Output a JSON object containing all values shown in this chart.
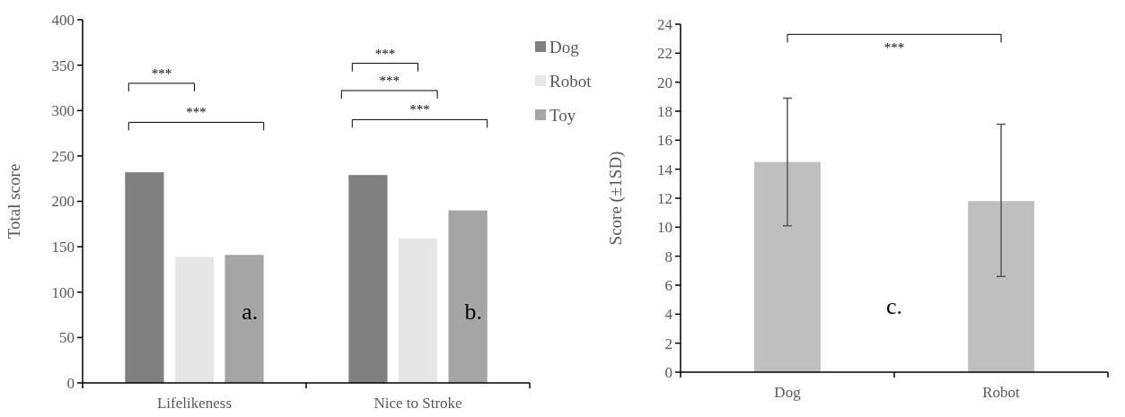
{
  "chart_data": [
    {
      "type": "bar",
      "ylabel": "Total score",
      "categories": [
        "Lifelikeness",
        "Nice to Stroke"
      ],
      "series": [
        {
          "name": "Dog",
          "color": "#808080",
          "values": [
            232,
            229
          ]
        },
        {
          "name": "Robot",
          "color": "#e6e6e6",
          "values": [
            139,
            159
          ]
        },
        {
          "name": "Toy",
          "color": "#a5a5a5",
          "values": [
            141,
            190
          ]
        }
      ],
      "ylim": [
        0,
        400
      ],
      "yticks": [
        0,
        50,
        100,
        150,
        200,
        250,
        300,
        350,
        400
      ],
      "legend": "top right",
      "annotations": [
        "***",
        "***",
        "***",
        "***",
        "***",
        "a.",
        "b."
      ]
    },
    {
      "type": "bar",
      "ylabel": "Score (±1SD)",
      "categories": [
        "Dog",
        "Robot"
      ],
      "values": [
        14.5,
        11.8
      ],
      "color": "#bfbfbf",
      "errors": [
        [
          10.1,
          18.9
        ],
        [
          6.6,
          17.1
        ]
      ],
      "ylim": [
        0,
        24
      ],
      "yticks": [
        0,
        2,
        4,
        6,
        8,
        10,
        12,
        14,
        16,
        18,
        20,
        22,
        24
      ],
      "annotations": [
        "***",
        "c."
      ]
    }
  ]
}
